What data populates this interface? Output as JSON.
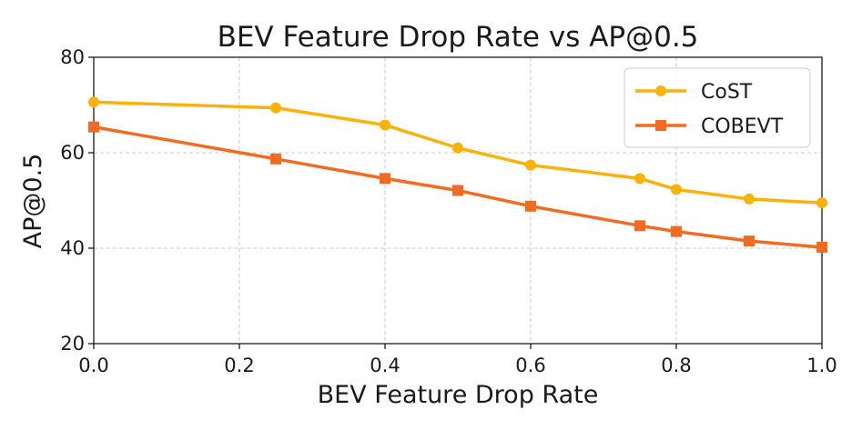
{
  "chart_data": {
    "type": "line",
    "title": "BEV Feature Drop Rate vs AP@0.5",
    "xlabel": "BEV Feature Drop Rate",
    "ylabel": "AP@0.5",
    "xlim": [
      0.0,
      1.0
    ],
    "ylim": [
      20,
      80
    ],
    "xticks": [
      0.0,
      0.2,
      0.4,
      0.6,
      0.8,
      1.0
    ],
    "xtick_labels": [
      "0.0",
      "0.2",
      "0.4",
      "0.6",
      "0.8",
      "1.0"
    ],
    "yticks": [
      20,
      40,
      60,
      80
    ],
    "ytick_labels": [
      "20",
      "40",
      "60",
      "80"
    ],
    "grid": true,
    "legend_position": "top-right",
    "series": [
      {
        "name": "CoST",
        "color": "#F9B208",
        "marker": "circle",
        "x": [
          0.0,
          0.25,
          0.4,
          0.5,
          0.6,
          0.75,
          0.8,
          0.9,
          1.0
        ],
        "values": [
          70.6,
          69.4,
          65.8,
          61.0,
          57.4,
          54.6,
          52.3,
          50.3,
          49.5
        ]
      },
      {
        "name": "COBEVT",
        "color": "#F26B21",
        "marker": "square",
        "x": [
          0.0,
          0.25,
          0.4,
          0.5,
          0.6,
          0.75,
          0.8,
          0.9,
          1.0
        ],
        "values": [
          65.4,
          58.7,
          54.6,
          52.1,
          48.8,
          44.7,
          43.5,
          41.5,
          40.2
        ]
      }
    ]
  }
}
